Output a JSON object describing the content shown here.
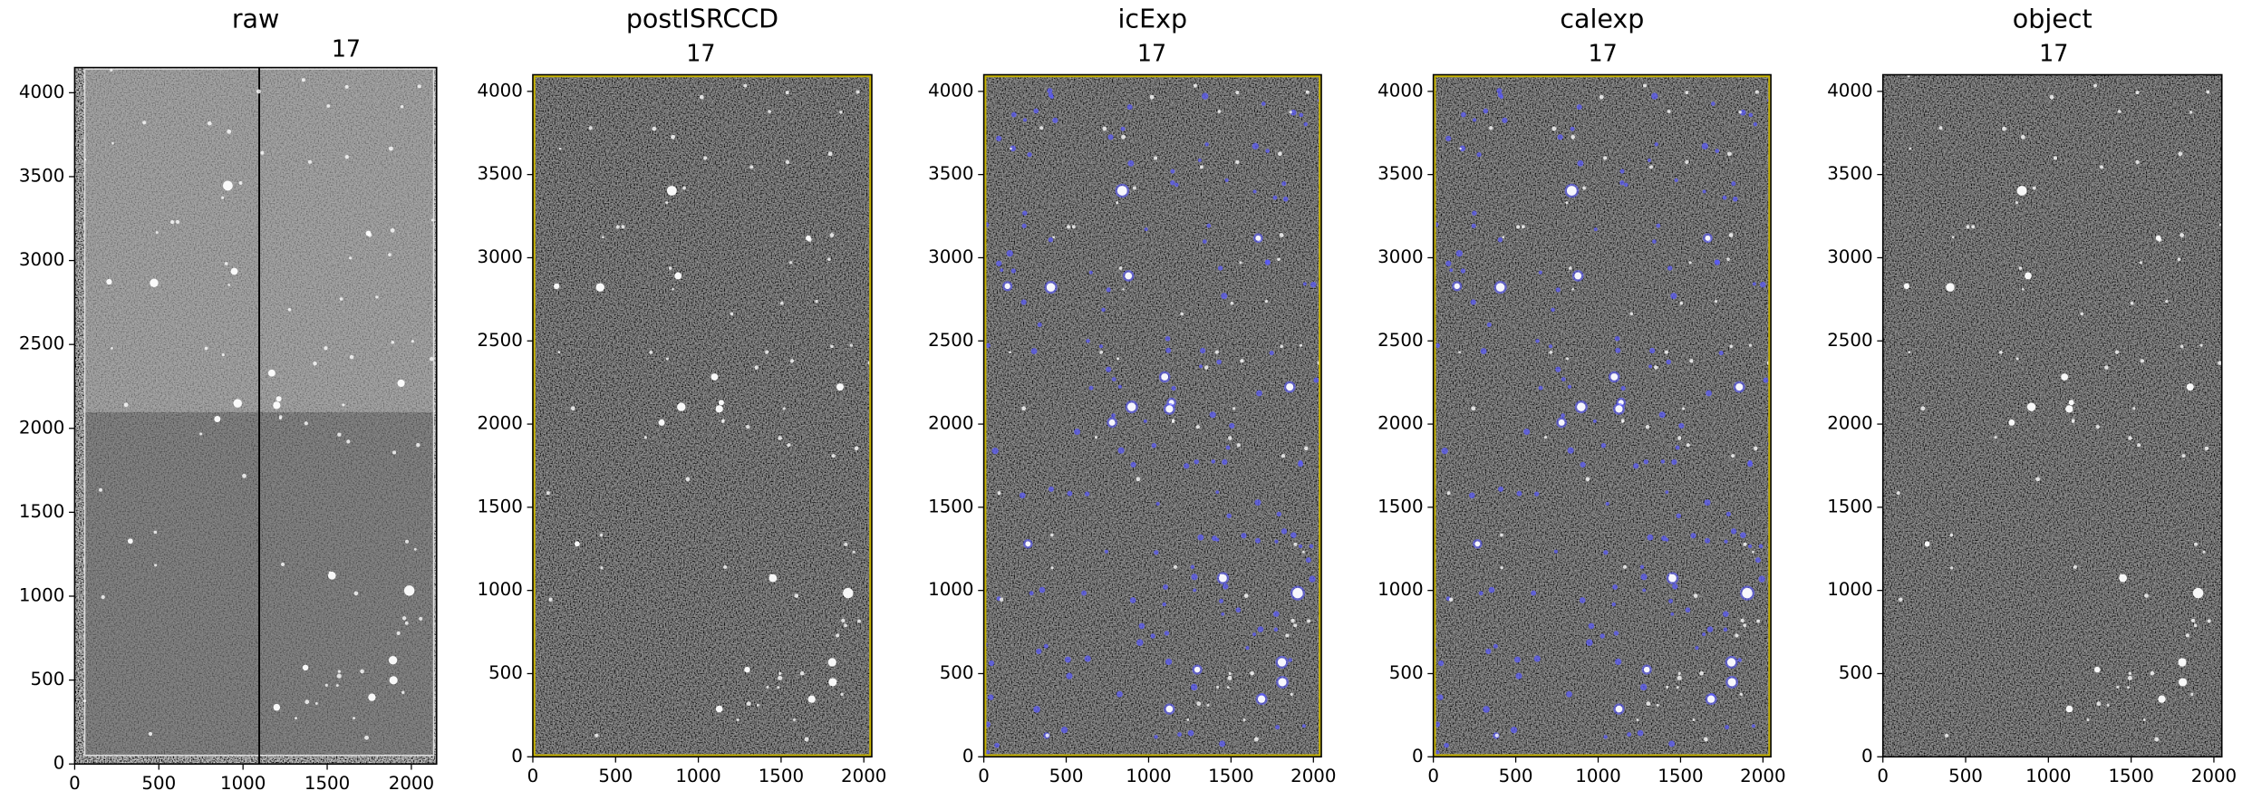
{
  "chart_data": [
    {
      "type": "image",
      "title": "raw",
      "subtitle": "17",
      "xlim": [
        0,
        2150
      ],
      "ylim": [
        0,
        4150
      ],
      "xticks": [
        0,
        500,
        1000,
        1500,
        2000
      ],
      "yticks": [
        0,
        500,
        1000,
        1500,
        2000,
        2500,
        3000,
        3500,
        4000
      ]
    },
    {
      "type": "image",
      "title": "postISRCCD",
      "subtitle": "17",
      "border_color": "#c8b400",
      "xlim": [
        0,
        2048
      ],
      "ylim": [
        0,
        4100
      ],
      "xticks": [
        0,
        500,
        1000,
        1500,
        2000
      ],
      "yticks": [
        0,
        500,
        1000,
        1500,
        2000,
        2500,
        3000,
        3500,
        4000
      ]
    },
    {
      "type": "image",
      "title": "icExp",
      "subtitle": "17",
      "border_color": "#c8b400",
      "mask_color": "#5a5aff",
      "xlim": [
        0,
        2048
      ],
      "ylim": [
        0,
        4100
      ],
      "xticks": [
        0,
        500,
        1000,
        1500,
        2000
      ],
      "yticks": [
        0,
        500,
        1000,
        1500,
        2000,
        2500,
        3000,
        3500,
        4000
      ]
    },
    {
      "type": "image",
      "title": "calexp",
      "subtitle": "17",
      "border_color": "#c8b400",
      "mask_color": "#5a5aff",
      "xlim": [
        0,
        2048
      ],
      "ylim": [
        0,
        4100
      ],
      "xticks": [
        0,
        500,
        1000,
        1500,
        2000
      ],
      "yticks": [
        0,
        500,
        1000,
        1500,
        2000,
        2500,
        3000,
        3500,
        4000
      ]
    },
    {
      "type": "image",
      "title": "object",
      "subtitle": "17",
      "xlim": [
        0,
        2048
      ],
      "ylim": [
        0,
        4100
      ],
      "xticks": [
        0,
        500,
        1000,
        1500,
        2000
      ],
      "yticks": [
        0,
        500,
        1000,
        1500,
        2000,
        2500,
        3000,
        3500,
        4000
      ]
    }
  ]
}
